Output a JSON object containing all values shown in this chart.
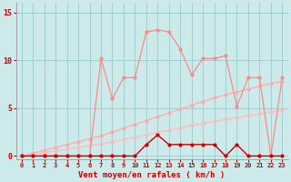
{
  "x": [
    0,
    1,
    2,
    3,
    4,
    5,
    6,
    7,
    8,
    9,
    10,
    11,
    12,
    13,
    14,
    15,
    16,
    17,
    18,
    19,
    20,
    21,
    22,
    23
  ],
  "line_jagged_y": [
    0,
    0,
    0,
    0,
    0,
    0,
    0,
    10.2,
    6.0,
    8.2,
    8.2,
    13.0,
    13.2,
    13.0,
    11.2,
    8.5,
    10.2,
    10.2,
    10.5,
    5.2,
    8.2,
    8.2,
    0,
    8.2
  ],
  "line_upper_trend_y": [
    0,
    0.3,
    0.6,
    0.9,
    1.2,
    1.5,
    1.8,
    2.1,
    2.5,
    2.9,
    3.3,
    3.7,
    4.1,
    4.5,
    4.9,
    5.3,
    5.7,
    6.1,
    6.4,
    6.7,
    7.0,
    7.3,
    7.6,
    7.8
  ],
  "line_lower_trend_y": [
    0,
    0.18,
    0.36,
    0.54,
    0.72,
    0.9,
    1.08,
    1.26,
    1.5,
    1.74,
    1.98,
    2.22,
    2.46,
    2.7,
    2.94,
    3.18,
    3.42,
    3.62,
    3.82,
    4.02,
    4.22,
    4.42,
    4.62,
    4.78
  ],
  "line_bottom_y": [
    0,
    0,
    0,
    0,
    0,
    0,
    0,
    0,
    0,
    0,
    0,
    1.2,
    2.2,
    1.2,
    1.2,
    1.2,
    1.2,
    1.2,
    0,
    1.2,
    0,
    0,
    0,
    0
  ],
  "bg_color": "#cceaea",
  "grid_color": "#99cccc",
  "line_jagged_color": "#ff8888",
  "line_upper_trend_color": "#ffaaaa",
  "line_lower_trend_color": "#ffbbbb",
  "line_bottom_color": "#cc0000",
  "xlabel": "Vent moyen/en rafales ( km/h )",
  "xlabel_color": "#cc0000",
  "yticks": [
    0,
    5,
    10,
    15
  ],
  "xticks": [
    0,
    1,
    2,
    3,
    4,
    5,
    6,
    7,
    8,
    9,
    10,
    11,
    12,
    13,
    14,
    15,
    16,
    17,
    18,
    19,
    20,
    21,
    22,
    23
  ],
  "ylim": [
    -0.3,
    16.0
  ],
  "xlim": [
    -0.5,
    23.5
  ],
  "tick_color": "#cc0000",
  "marker_size": 2.0,
  "line_width": 0.9
}
